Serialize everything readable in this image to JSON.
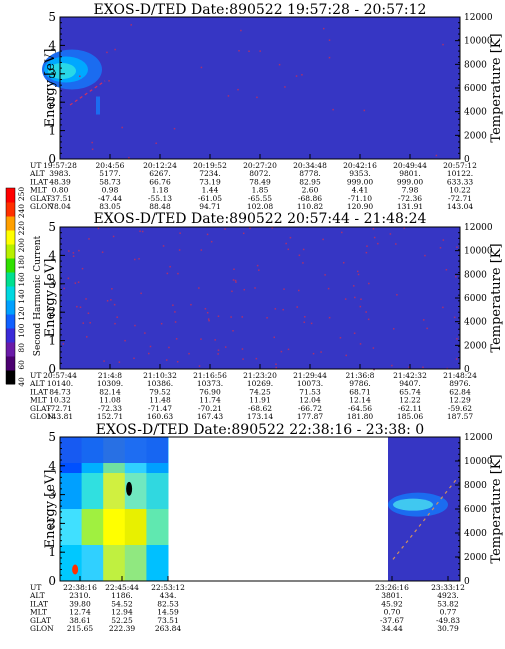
{
  "chart_data": [
    {
      "type": "heatmap",
      "title": "EXOS-D/TED   Date:890522  19:57:28 - 20:57:12",
      "ylabel": "Energy [eV]",
      "ylabel_right": "Temperature [K]",
      "ylim": [
        0,
        5
      ],
      "yticks": [
        "0",
        "1",
        "2",
        "3",
        "4",
        "5"
      ],
      "ylim_right": [
        0,
        12000
      ],
      "yticks_right": [
        "0",
        "2000",
        "4000",
        "6000",
        "8000",
        "10000",
        "12000"
      ],
      "background": "#3636c4",
      "data_segments": [
        [
          0,
          1
        ]
      ],
      "row_labels": [
        "UT",
        "ALT",
        "ILAT",
        "MLT",
        "GLAT",
        "GLON"
      ],
      "columns": [
        [
          "19:57:28",
          "3983.",
          "48.39",
          "0.80",
          "-37.51",
          "78.04"
        ],
        [
          "20:4:56",
          "5177.",
          "58.73",
          "0.98",
          "-47.44",
          "83.05"
        ],
        [
          "20:12:24",
          "6267.",
          "66.76",
          "1.18",
          "-55.13",
          "88.48"
        ],
        [
          "20:19:52",
          "7234.",
          "73.19",
          "1.44",
          "-61.05",
          "94.71"
        ],
        [
          "20:27:20",
          "8072.",
          "78.49",
          "1.85",
          "-65.55",
          "102.08"
        ],
        [
          "20:34:48",
          "8778.",
          "82.95",
          "2.60",
          "-68.86",
          "110.82"
        ],
        [
          "20:42:16",
          "9353.",
          "999.00",
          "4.41",
          "-71.10",
          "120.90"
        ],
        [
          "20:49:44",
          "9801.",
          "999.00",
          "7.98",
          "-72.36",
          "131.91"
        ],
        [
          "20:57:12",
          "10122.",
          "633.33",
          "10.22",
          "-72.71",
          "143.04"
        ]
      ]
    },
    {
      "type": "heatmap",
      "title": "EXOS-D/TED   Date:890522  20:57:44 - 21:48:24",
      "ylabel": "Energy [eV]",
      "ylabel_right": "Temperature [K]",
      "ylim": [
        0,
        5
      ],
      "yticks": [
        "0",
        "1",
        "2",
        "3",
        "4",
        "5"
      ],
      "ylim_right": [
        0,
        12000
      ],
      "yticks_right": [
        "0",
        "2000",
        "4000",
        "6000",
        "8000",
        "10000",
        "12000"
      ],
      "background": "#3636c4",
      "data_segments": [
        [
          0,
          1
        ]
      ],
      "row_labels": [
        "UT",
        "ALT",
        "ILAT",
        "MLT",
        "GLAT",
        "GLON"
      ],
      "columns": [
        [
          "20:57:44",
          "10140.",
          "84.73",
          "10.32",
          "-72.71",
          "143.81"
        ],
        [
          "21:4:8",
          "10309.",
          "82.14",
          "11.08",
          "-72.33",
          "152.71"
        ],
        [
          "21:10:32",
          "10386.",
          "79.52",
          "11.48",
          "-71.47",
          "160.63"
        ],
        [
          "21:16:56",
          "10373.",
          "76.90",
          "11.74",
          "-70.21",
          "167.43"
        ],
        [
          "21:23:20",
          "10269.",
          "74.25",
          "11.91",
          "-68.62",
          "173.14"
        ],
        [
          "21:29:44",
          "10073.",
          "71.53",
          "12.04",
          "-66.72",
          "177.87"
        ],
        [
          "21:36:8",
          "9786.",
          "68.71",
          "12.14",
          "-64.56",
          "181.80"
        ],
        [
          "21:42:32",
          "9407.",
          "65.74",
          "12.22",
          "-62.11",
          "185.06"
        ],
        [
          "21:48:24",
          "8976.",
          "62.84",
          "12.29",
          "-59.62",
          "187.57"
        ]
      ]
    },
    {
      "type": "heatmap",
      "title": "EXOS-D/TED   Date:890522  22:38:16 - 23:38: 0",
      "ylabel": "Energy [eV]",
      "ylabel_right": "Temperature [K]",
      "ylim": [
        0,
        5
      ],
      "yticks": [
        "0",
        "1",
        "2",
        "3",
        "4",
        "5"
      ],
      "ylim_right": [
        0,
        12000
      ],
      "yticks_right": [
        "0",
        "2000",
        "4000",
        "6000",
        "8000",
        "10000",
        "12000"
      ],
      "background": "#ffffff",
      "data_segments": [
        [
          0,
          0.27
        ],
        [
          0.82,
          1
        ]
      ],
      "row_labels": [
        "UT",
        "ALT",
        "ILAT",
        "MLT",
        "GLAT",
        "GLON"
      ],
      "columns": [
        [
          "22:38:16",
          "2310.",
          "39.80",
          "12.74",
          "38.61",
          "215.65"
        ],
        [
          "22:45:44",
          "1186.",
          "54.52",
          "12.94",
          "52.25",
          "222.39"
        ],
        [
          "22:53:12",
          "434.",
          "82.53",
          "14.59",
          "73.51",
          "263.84"
        ],
        [
          "23:26:16",
          "3801.",
          "45.92",
          "0.70",
          "-37.67",
          "34.44"
        ],
        [
          "23:33:12",
          "4923.",
          "53.82",
          "0.77",
          "-49.83",
          "30.79"
        ]
      ]
    }
  ],
  "colorbar": {
    "label": "Second Harmonic Current",
    "ticks": [
      "40",
      "60",
      "80",
      "100",
      "120",
      "140",
      "160",
      "180",
      "200",
      "220",
      "240",
      "250"
    ],
    "colors": [
      "#000000",
      "#4b0070",
      "#6a1aa8",
      "#3a2ad8",
      "#1060ff",
      "#00a0ff",
      "#00d8e0",
      "#00e090",
      "#30e000",
      "#b8f000",
      "#ffff00",
      "#ffa000",
      "#ff3000",
      "#ff0000"
    ]
  }
}
